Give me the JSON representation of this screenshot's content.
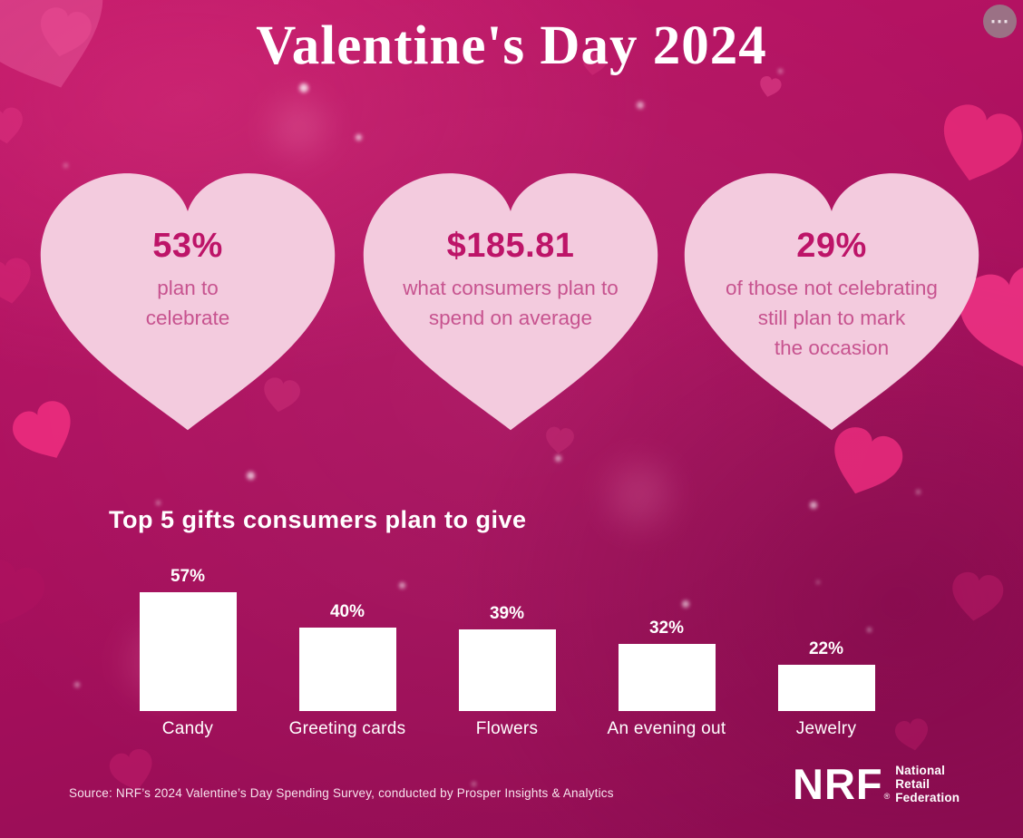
{
  "toolbar": {
    "more_button": "⋯"
  },
  "header": {
    "title": "Valentine's Day 2024"
  },
  "hearts": [
    {
      "value": "53%",
      "lines": [
        "plan to",
        "celebrate"
      ]
    },
    {
      "value": "$185.81",
      "lines": [
        "what consumers plan to",
        "spend on average"
      ]
    },
    {
      "value": "29%",
      "lines": [
        "of those not celebrating",
        "still plan to mark",
        "the occasion"
      ]
    }
  ],
  "chart_data": {
    "type": "bar",
    "title": "Top 5 gifts consumers plan to give",
    "categories": [
      "Candy",
      "Greeting cards",
      "Flowers",
      "An evening out",
      "Jewelry"
    ],
    "values": [
      57,
      40,
      39,
      32,
      22
    ],
    "value_labels": [
      "57%",
      "40%",
      "39%",
      "32%",
      "22%"
    ],
    "bar_color": "#ffffff",
    "ylim": [
      0,
      60
    ],
    "grid": false,
    "legend": false
  },
  "footer": {
    "source": "Source: NRF’s 2024 Valentine’s Day Spending Survey, conducted by Prosper Insights & Analytics",
    "logo": {
      "abbr": "NRF",
      "registered": "®",
      "name_lines": [
        "National",
        "Retail",
        "Federation"
      ]
    }
  },
  "colors": {
    "background": "#a90f5d",
    "heart_fill": "#f3cbde",
    "stat_value": "#bd1468",
    "stat_text": "#c7538f",
    "accent_heart": "#ee2d7f",
    "text": "#ffffff"
  }
}
